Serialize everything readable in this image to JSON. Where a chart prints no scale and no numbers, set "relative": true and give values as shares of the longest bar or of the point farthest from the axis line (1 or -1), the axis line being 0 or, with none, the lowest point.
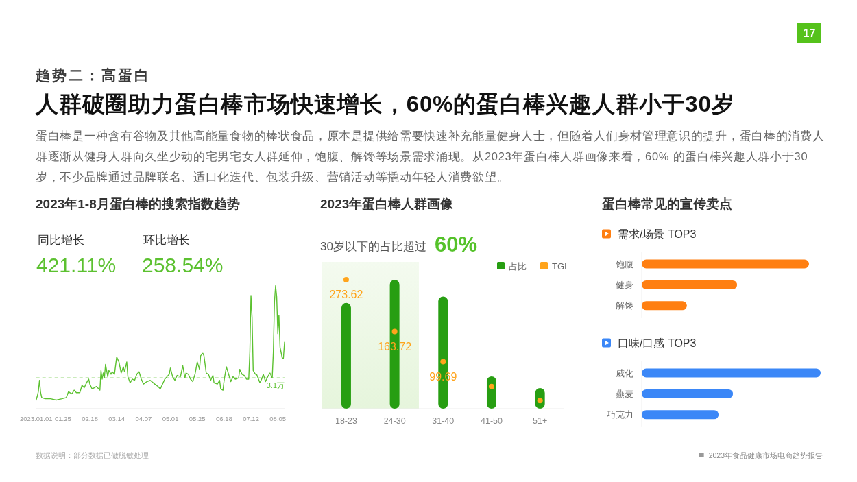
{
  "chart_data": [
    {
      "type": "other",
      "subtitle": "趋势二：高蛋白",
      "title": "人群破圈助力蛋白棒市场快速增长，60%的蛋白棒兴趣人群小于30岁",
      "annotations": [
        "17",
        "蛋白棒是一种含有谷物及其他高能量食物的棒状食品，原本是提供给需要快速补充能量健身人士，但随着人们身材管理意识的提升，蛋白棒的消费人群逐渐从健身人群向久坐少动的宅男宅女人群延伸，饱腹、解馋等场景需求涌现。从2023年蛋白棒人群画像来看，60% 的蛋白棒兴趣人群小于30岁，不少品牌通过品牌联名、适口化迭代、包装升级、营销活动等撬动年轻人消费欲望。"
      ]
    },
    {
      "type": "line",
      "title": "2023年1-8月蛋白棒的搜索指数趋势",
      "annotations": [
        "同比增长",
        "421.11%",
        "环比增长",
        "258.54%"
      ],
      "relative": true,
      "color": "#5cc130",
      "line_style": "solid",
      "x": [
        "2023-01-01",
        "2023-01-02",
        "2023-01-03",
        "2023-01-04",
        "2023-01-05",
        "2023-01-06",
        "2023-01-09",
        "2023-01-14",
        "2023-01-19",
        "2023-01-24",
        "2023-01-28",
        "2023-01-30",
        "2023-01-31",
        "2023-02-02",
        "2023-02-04",
        "2023-02-06",
        "2023-02-09",
        "2023-02-11",
        "2023-02-13",
        "2023-02-15",
        "2023-02-17",
        "2023-02-18",
        "2023-02-20",
        "2023-02-24",
        "2023-02-27",
        "2023-02-28",
        "2023-03-01",
        "2023-03-02",
        "2023-03-03",
        "2023-03-04",
        "2023-03-06",
        "2023-03-07",
        "2023-03-09",
        "2023-03-10",
        "2023-03-12",
        "2023-03-14",
        "2023-03-16",
        "2023-03-18",
        "2023-03-20",
        "2023-03-21",
        "2023-03-23",
        "2023-03-24",
        "2023-03-26",
        "2023-03-28",
        "2023-03-30",
        "2023-04-01",
        "2023-04-03",
        "2023-04-05",
        "2023-04-07",
        "2023-04-10",
        "2023-04-13",
        "2023-04-17",
        "2023-04-20",
        "2023-04-22",
        "2023-04-24",
        "2023-04-26",
        "2023-04-28",
        "2023-04-30",
        "2023-05-01",
        "2023-05-03",
        "2023-05-05",
        "2023-05-07",
        "2023-05-10",
        "2023-05-12",
        "2023-05-14",
        "2023-05-15",
        "2023-05-17",
        "2023-05-19",
        "2023-05-21",
        "2023-05-23",
        "2023-05-25",
        "2023-05-27",
        "2023-05-28",
        "2023-05-30",
        "2023-05-31",
        "2023-06-02",
        "2023-06-04",
        "2023-06-06",
        "2023-06-08",
        "2023-06-09",
        "2023-06-12",
        "2023-06-14",
        "2023-06-15",
        "2023-06-17",
        "2023-06-18",
        "2023-06-20",
        "2023-06-22",
        "2023-06-24",
        "2023-06-26",
        "2023-06-28",
        "2023-07-01",
        "2023-07-02",
        "2023-07-04",
        "2023-07-06",
        "2023-07-08",
        "2023-07-10",
        "2023-07-11",
        "2023-07-12",
        "2023-07-13",
        "2023-07-14",
        "2023-07-16",
        "2023-07-17",
        "2023-07-20",
        "2023-07-22",
        "2023-07-23",
        "2023-07-25",
        "2023-07-27",
        "2023-07-29",
        "2023-07-31",
        "2023-08-01",
        "2023-08-02",
        "2023-08-03",
        "2023-08-04",
        "2023-08-05",
        "2023-08-06",
        "2023-08-07",
        "2023-08-09",
        "2023-08-10",
        "2023-08-11"
      ],
      "values": [
        0.07,
        0.1,
        0.14,
        0.23,
        0.13,
        0.09,
        0.08,
        0.08,
        0.07,
        0.08,
        0.09,
        0.14,
        0.13,
        0.12,
        0.15,
        0.13,
        0.13,
        0.19,
        0.17,
        0.21,
        0.24,
        0.2,
        0.16,
        0.18,
        0.15,
        0.31,
        0.24,
        0.29,
        0.25,
        0.36,
        0.26,
        0.31,
        0.28,
        0.3,
        0.28,
        0.42,
        0.38,
        0.29,
        0.34,
        0.3,
        0.38,
        0.26,
        0.21,
        0.24,
        0.23,
        0.28,
        0.3,
        0.24,
        0.2,
        0.22,
        0.23,
        0.2,
        0.18,
        0.16,
        0.2,
        0.24,
        0.26,
        0.28,
        0.33,
        0.26,
        0.23,
        0.27,
        0.26,
        0.35,
        0.25,
        0.29,
        0.28,
        0.24,
        0.22,
        0.28,
        0.38,
        0.32,
        0.43,
        0.45,
        0.43,
        0.29,
        0.28,
        0.23,
        0.27,
        0.21,
        0.2,
        0.23,
        0.16,
        0.15,
        0.23,
        0.34,
        0.28,
        0.22,
        0.26,
        0.24,
        0.25,
        0.32,
        0.28,
        0.27,
        0.24,
        0.24,
        0.46,
        0.92,
        0.74,
        0.31,
        0.28,
        0.28,
        0.21,
        0.25,
        0.28,
        0.22,
        0.26,
        0.29,
        0.25,
        0.46,
        0.87,
        1.0,
        0.91,
        0.61,
        0.76,
        0.5,
        0.41,
        0.41,
        0.54
      ],
      "xlim": [
        "2023-01-01",
        "2023-08-11"
      ],
      "xticks": [
        {
          "value": "2023-01-01",
          "label": "2023.01.01"
        },
        {
          "value": "2023-01-25",
          "label": "01.25"
        },
        {
          "value": "2023-02-18",
          "label": "02.18"
        },
        {
          "value": "2023-03-14",
          "label": "03.14"
        },
        {
          "value": "2023-04-07",
          "label": "04.07"
        },
        {
          "value": "2023-05-01",
          "label": "05.01"
        },
        {
          "value": "2023-05-25",
          "label": "05.25"
        },
        {
          "value": "2023-06-18",
          "label": "06.18"
        },
        {
          "value": "2023-07-12",
          "label": "07.12"
        },
        {
          "value": "2023-08-05",
          "label": "08.05"
        }
      ],
      "ref_lines": [
        {
          "axis": "y",
          "value": 0.25,
          "label": "3.1万",
          "color": "#5cc130",
          "line_style": "dashed"
        }
      ]
    },
    {
      "type": "bar",
      "title": "2023年蛋白棒人群画像",
      "annotations": [
        "30岁以下的占比超过",
        "60%"
      ],
      "categories": [
        "18-23",
        "24-30",
        "31-40",
        "41-50",
        "51+"
      ],
      "relative": true,
      "legend": "top right",
      "bands": [
        {
          "axis": "x",
          "from": "18-23",
          "to": "24-30",
          "color": "#e6f5dc"
        }
      ],
      "series": [
        {
          "name": "占比",
          "color": "#279e12",
          "values": [
            0.82,
            1,
            0.87,
            0.25,
            0.16
          ]
        }
      ]
    },
    {
      "type": "scatter",
      "categories": [
        null,
        null,
        null,
        null,
        null
      ],
      "legend": "top right",
      "marker": "circle",
      "series": [
        {
          "name": "TGI",
          "color": "#ffa41c",
          "values": [
            273.62,
            163.72,
            99.69,
            47,
            17
          ],
          "value_labels": [
            "273.62",
            "163.72",
            "99.69",
            null,
            null
          ]
        }
      ]
    },
    {
      "type": "bar",
      "orientation": "horizontal",
      "title": "蛋白棒常见的宣传卖点",
      "subtitle": "需求/场景 TOP3",
      "categories": [
        "饱腹",
        "健身",
        "解馋"
      ],
      "values": [
        1,
        0.57,
        0.27
      ],
      "color": "#ff7f11",
      "relative": true
    },
    {
      "type": "bar",
      "orientation": "horizontal",
      "subtitle": "口味/口感 TOP3",
      "categories": [
        "威化",
        "燕麦",
        "巧克力"
      ],
      "values": [
        1,
        0.51,
        0.43
      ],
      "color": "#3b87f7",
      "relative": true
    },
    {
      "type": "other",
      "annotations": [
        "数据说明：部分数据已做脱敏处理",
        "2023年食品健康市场电商趋势报告"
      ]
    }
  ]
}
